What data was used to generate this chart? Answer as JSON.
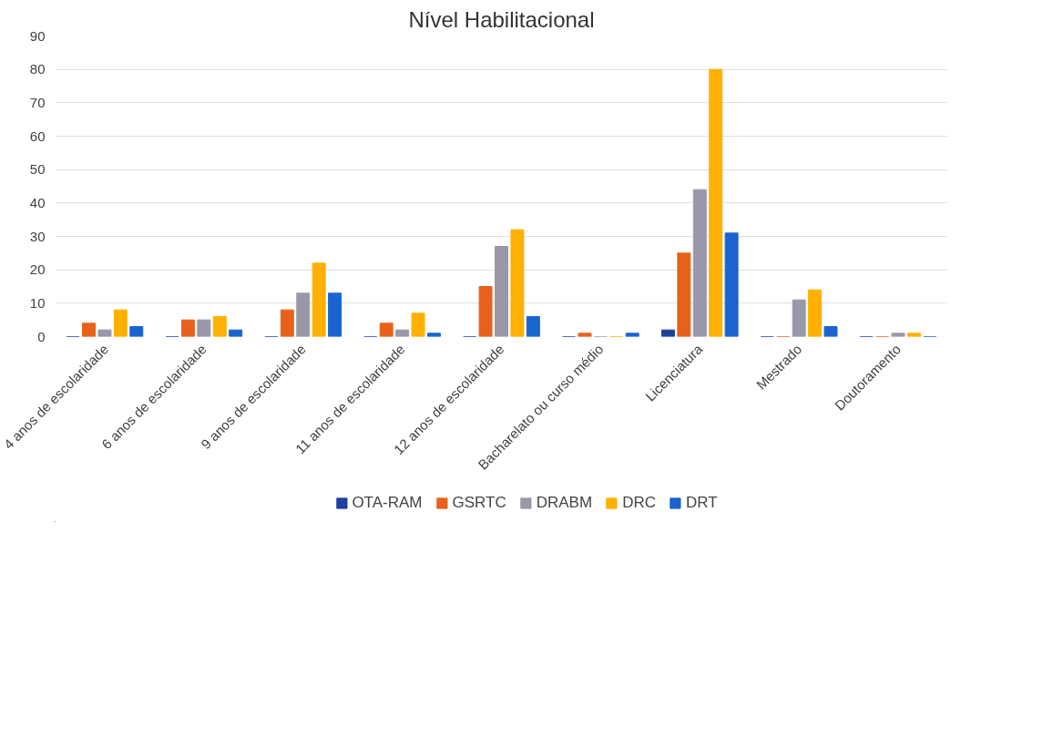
{
  "chart_data": {
    "type": "bar",
    "title": "Nível Habilitacional",
    "categories": [
      "4 anos de escolaridade",
      "6 anos de escolaridade",
      "9 anos de escolaridade",
      "11 anos de escolaridade",
      "12 anos de escolaridade",
      "Bacharelato ou curso médio",
      "Licenciatura",
      "Mestrado",
      "Doutoramento"
    ],
    "series": [
      {
        "name": "OTA-RAM",
        "color": "#1f3f9f",
        "values": [
          0,
          0,
          0,
          0,
          0,
          0,
          2,
          0,
          0
        ]
      },
      {
        "name": "GSRTC",
        "color": "#e8611a",
        "values": [
          4,
          5,
          8,
          4,
          15,
          1,
          25,
          0,
          0
        ]
      },
      {
        "name": "DRABM",
        "color": "#9a98a8",
        "values": [
          2,
          5,
          13,
          2,
          27,
          0,
          44,
          11,
          1
        ]
      },
      {
        "name": "DRC",
        "color": "#ffb000",
        "values": [
          8,
          6,
          22,
          7,
          32,
          0,
          80,
          14,
          1
        ]
      },
      {
        "name": "DRT",
        "color": "#1a64d0",
        "values": [
          3,
          2,
          13,
          1,
          6,
          1,
          31,
          3,
          0
        ]
      }
    ],
    "ylim": [
      0,
      90
    ],
    "yticks": [
      0,
      10,
      20,
      30,
      40,
      50,
      60,
      70,
      80,
      90
    ],
    "grid": "y",
    "legend": "bottom"
  }
}
